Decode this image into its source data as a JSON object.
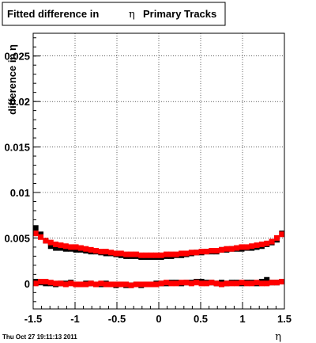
{
  "footer": {
    "timestamp": "Thu Oct 27 19:11:13 2011"
  },
  "chart_data": {
    "type": "scatter",
    "title": "Fitted difference in η Primary Tracks",
    "title_parts": {
      "prefix": "Fitted difference in",
      "symbol": "η",
      "suffix": "Primary Tracks"
    },
    "xlabel": "η",
    "ylabel": "difference in η",
    "xlim": [
      -1.5,
      1.5
    ],
    "ylim": [
      -0.0028,
      0.0275
    ],
    "x_ticks": [
      -1.5,
      -1,
      -0.5,
      0,
      0.5,
      1,
      1.5
    ],
    "x_tick_labels": [
      "-1.5",
      "-1",
      "-0.5",
      "0",
      "0.5",
      "1",
      "1.5"
    ],
    "y_ticks": [
      0,
      0.005,
      0.01,
      0.015,
      0.02,
      0.025
    ],
    "y_tick_labels": [
      "0",
      "0.005",
      "0.01",
      "0.015",
      "0.02",
      "0.025"
    ],
    "grid": true,
    "colors": {
      "black_series": "#000000",
      "red_series": "#ff0000"
    },
    "x": [
      -1.47,
      -1.41,
      -1.35,
      -1.29,
      -1.23,
      -1.17,
      -1.11,
      -1.05,
      -0.99,
      -0.93,
      -0.87,
      -0.81,
      -0.75,
      -0.69,
      -0.63,
      -0.57,
      -0.51,
      -0.45,
      -0.39,
      -0.33,
      -0.27,
      -0.21,
      -0.15,
      -0.09,
      -0.03,
      0.03,
      0.09,
      0.15,
      0.21,
      0.27,
      0.33,
      0.39,
      0.45,
      0.51,
      0.57,
      0.63,
      0.69,
      0.75,
      0.81,
      0.87,
      0.93,
      0.99,
      1.05,
      1.11,
      1.17,
      1.23,
      1.29,
      1.35,
      1.41,
      1.47
    ],
    "series": [
      {
        "color": "#000000",
        "group": "width",
        "values": [
          0.0061,
          0.0054,
          0.0047,
          0.0041,
          0.0039,
          0.0039,
          0.0038,
          0.0038,
          0.0037,
          0.0037,
          0.0036,
          0.0035,
          0.0035,
          0.0034,
          0.0033,
          0.0033,
          0.0032,
          0.0031,
          0.003,
          0.003,
          0.003,
          0.0029,
          0.0029,
          0.0029,
          0.0029,
          0.0029,
          0.003,
          0.003,
          0.0031,
          0.0031,
          0.0032,
          0.0033,
          0.0034,
          0.0034,
          0.0035,
          0.0035,
          0.0035,
          0.0037,
          0.0037,
          0.0038,
          0.0038,
          0.0038,
          0.0039,
          0.0039,
          0.004,
          0.0041,
          0.0043,
          0.0045,
          0.0048,
          0.0055
        ]
      },
      {
        "color": "#ff0000",
        "group": "width",
        "values": [
          0.0055,
          0.0051,
          0.0047,
          0.0045,
          0.0043,
          0.0042,
          0.0041,
          0.004,
          0.004,
          0.0039,
          0.0038,
          0.0037,
          0.0036,
          0.0035,
          0.0035,
          0.0034,
          0.0033,
          0.0033,
          0.0032,
          0.0032,
          0.0032,
          0.0031,
          0.0031,
          0.0031,
          0.0031,
          0.0031,
          0.0032,
          0.0032,
          0.0032,
          0.0033,
          0.0033,
          0.0034,
          0.0034,
          0.0035,
          0.0035,
          0.0036,
          0.0036,
          0.0037,
          0.0038,
          0.0038,
          0.0039,
          0.004,
          0.004,
          0.0041,
          0.0042,
          0.0043,
          0.0044,
          0.0046,
          0.005,
          0.0054
        ]
      },
      {
        "color": "#000000",
        "group": "mean",
        "values": [
          0.0002,
          0.0001,
          0.0,
          0.0,
          -0.0001,
          0.0,
          0.0,
          0.0001,
          -0.0001,
          -0.0001,
          0.0,
          0.0,
          -0.0001,
          -0.0001,
          0.0,
          -0.0001,
          -0.0002,
          -0.0001,
          -0.0002,
          -0.0002,
          -0.0001,
          -0.0002,
          -0.0001,
          -0.0001,
          0.0,
          0.0,
          0.0,
          0.0001,
          0.0001,
          0.0,
          0.0001,
          0.0001,
          0.0002,
          0.0002,
          0.0001,
          0.0001,
          0.0,
          0.0001,
          0.0,
          0.0001,
          0.0001,
          0.0,
          0.0001,
          0.0001,
          0.0,
          0.0002,
          0.0004,
          0.0001,
          0.0001,
          0.0002
        ]
      },
      {
        "color": "#ff0000",
        "group": "mean",
        "values": [
          0.0,
          0.0002,
          0.0002,
          0.0001,
          0.0,
          0.0,
          -0.0001,
          0.0,
          -0.0001,
          -0.0001,
          -0.0001,
          0.0,
          -0.0001,
          0.0,
          -0.0001,
          -0.0001,
          -0.0001,
          -0.0001,
          -0.0001,
          -0.0002,
          -0.0001,
          -0.0001,
          -0.0001,
          -0.0001,
          -0.0001,
          0.0,
          0.0001,
          0.0,
          0.0,
          0.0001,
          0.0001,
          0.0,
          0.0001,
          0.0,
          0.0,
          0.0001,
          0.0,
          -0.0001,
          0.0,
          0.0,
          0.0,
          0.0001,
          0.0,
          0.0,
          0.0001,
          0.0,
          0.0,
          0.0001,
          0.0001,
          0.0002
        ]
      }
    ]
  }
}
